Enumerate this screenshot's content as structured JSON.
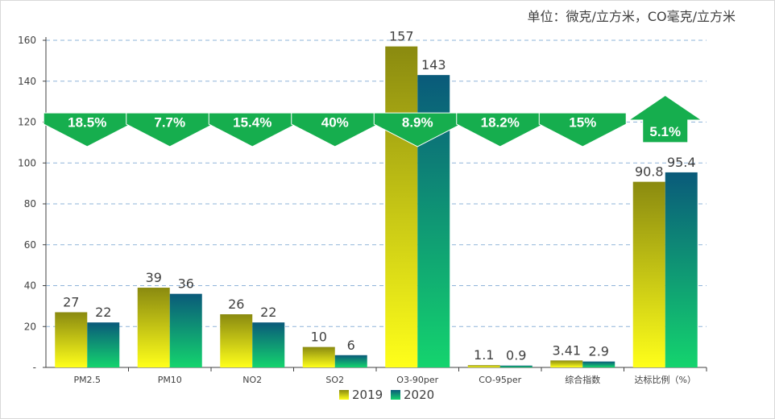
{
  "unit_note": "单位：微克/立方米，CO毫克/立方米",
  "chart_data": {
    "type": "bar",
    "categories": [
      "PM2.5",
      "PM10",
      "NO2",
      "SO2",
      "O3-90per",
      "CO-95per",
      "综合指数",
      "达标比例（%）"
    ],
    "series": [
      {
        "name": "2019",
        "values": [
          27,
          39,
          26,
          10,
          157,
          1.1,
          3.41,
          90.8
        ],
        "labels": [
          "27",
          "39",
          "26",
          "10",
          "157",
          "1.1",
          "3.41",
          "90.8"
        ]
      },
      {
        "name": "2020",
        "values": [
          22,
          36,
          22,
          6,
          143,
          0.9,
          2.9,
          95.4
        ],
        "labels": [
          "22",
          "36",
          "22",
          "6",
          "143",
          "0.9",
          "2.9",
          "95.4"
        ]
      }
    ],
    "ylim": [
      0,
      160
    ],
    "yticks": [
      0,
      20,
      40,
      60,
      80,
      100,
      120,
      140,
      160
    ],
    "ytick_labels": [
      "-",
      "20",
      "40",
      "60",
      "80",
      "100",
      "120",
      "140",
      "160"
    ],
    "gridlines": "dashed horizontal",
    "legend_position": "bottom",
    "change_annotations": [
      {
        "label": "18.5%",
        "direction": "down"
      },
      {
        "label": "7.7%",
        "direction": "down"
      },
      {
        "label": "15.4%",
        "direction": "down"
      },
      {
        "label": "40%",
        "direction": "down"
      },
      {
        "label": "8.9%",
        "direction": "down"
      },
      {
        "label": "18.2%",
        "direction": "down"
      },
      {
        "label": "15%",
        "direction": "down"
      },
      {
        "label": "5.1%",
        "direction": "up"
      }
    ],
    "colors": {
      "s2019_top": "#8a8a10",
      "s2019_bottom": "#ffff1a",
      "s2020_top": "#0a5a7a",
      "s2020_bottom": "#14d46e",
      "arrow": "#16ae4e",
      "grid": "#8fb4d9"
    }
  }
}
